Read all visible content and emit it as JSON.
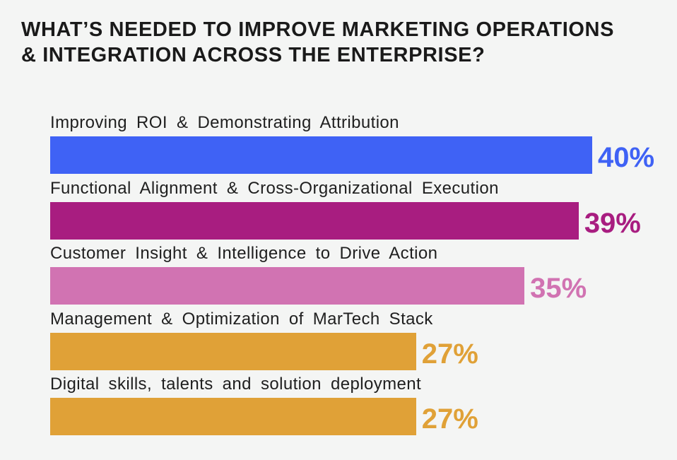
{
  "chart_data": {
    "type": "bar",
    "orientation": "horizontal",
    "title_lines": [
      "WHAT’S NEEDED TO IMPROVE MARKETING OPERATIONS",
      "& INTEGRATION ACROSS THE ENTERPRISE?"
    ],
    "categories": [
      "Improving ROI & Demonstrating Attribution",
      "Functional Alignment & Cross-Organizational Execution",
      "Customer Insight & Intelligence to Drive Action",
      "Management & Optimization of MarTech Stack",
      "Digital skills, talents and solution deployment"
    ],
    "values": [
      40,
      39,
      35,
      27,
      27
    ],
    "value_labels": [
      "40%",
      "39%",
      "35%",
      "27%",
      "27%"
    ],
    "colors": [
      "#3f62f5",
      "#a81d80",
      "#d173b2",
      "#e0a137",
      "#e0a137"
    ],
    "unit": "%",
    "xlim": [
      0,
      40
    ],
    "grid": false,
    "legend": "none"
  }
}
